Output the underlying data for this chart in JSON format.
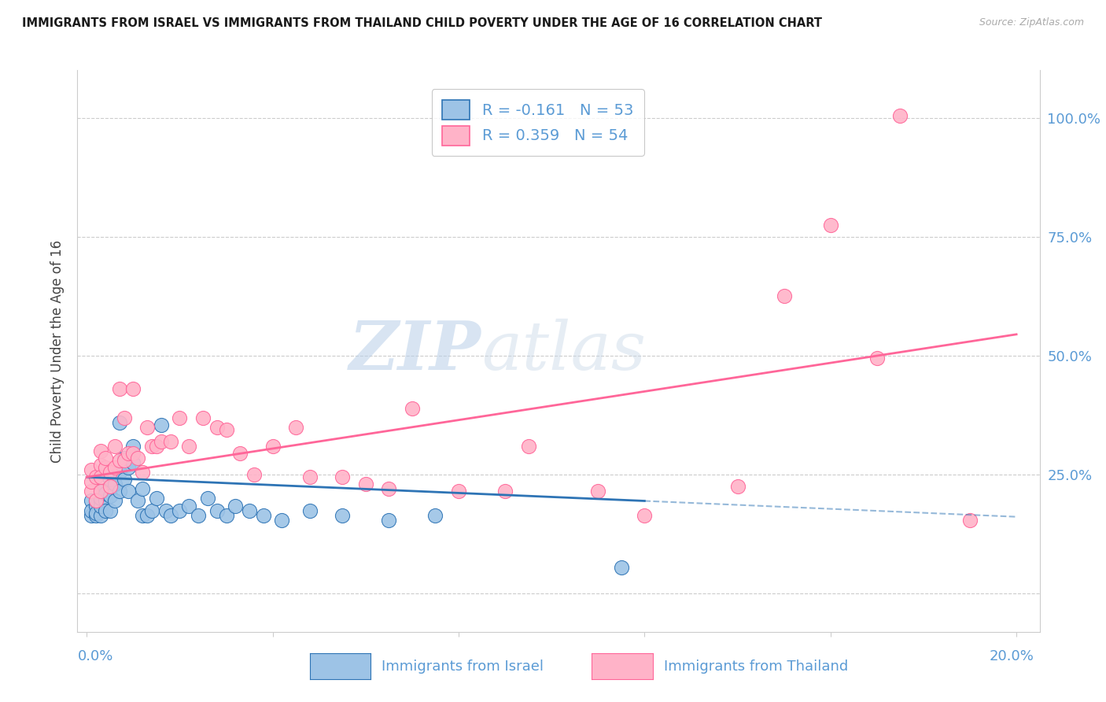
{
  "title": "IMMIGRANTS FROM ISRAEL VS IMMIGRANTS FROM THAILAND CHILD POVERTY UNDER THE AGE OF 16 CORRELATION CHART",
  "source": "Source: ZipAtlas.com",
  "ylabel": "Child Poverty Under the Age of 16",
  "right_axis_color": "#5b9bd5",
  "legend_r1": "-0.161",
  "legend_n1": "53",
  "legend_r2": "0.359",
  "legend_n2": "54",
  "legend_label1": "Immigrants from Israel",
  "legend_label2": "Immigrants from Thailand",
  "color_israel": "#9dc3e6",
  "color_thailand": "#ffb3c8",
  "color_israel_line": "#2e74b5",
  "color_thailand_line": "#ff6699",
  "watermark_zip": "ZIP",
  "watermark_atlas": "atlas",
  "israel_x": [
    0.001,
    0.001,
    0.001,
    0.002,
    0.002,
    0.002,
    0.002,
    0.003,
    0.003,
    0.003,
    0.003,
    0.003,
    0.004,
    0.004,
    0.004,
    0.005,
    0.005,
    0.005,
    0.006,
    0.006,
    0.007,
    0.007,
    0.007,
    0.008,
    0.008,
    0.009,
    0.009,
    0.01,
    0.01,
    0.011,
    0.012,
    0.012,
    0.013,
    0.014,
    0.015,
    0.016,
    0.017,
    0.018,
    0.02,
    0.022,
    0.024,
    0.026,
    0.028,
    0.03,
    0.032,
    0.035,
    0.038,
    0.042,
    0.048,
    0.055,
    0.065,
    0.075,
    0.115
  ],
  "israel_y": [
    0.195,
    0.165,
    0.175,
    0.185,
    0.165,
    0.17,
    0.195,
    0.165,
    0.195,
    0.185,
    0.2,
    0.215,
    0.195,
    0.175,
    0.21,
    0.24,
    0.205,
    0.175,
    0.195,
    0.23,
    0.36,
    0.255,
    0.215,
    0.285,
    0.24,
    0.265,
    0.215,
    0.275,
    0.31,
    0.195,
    0.22,
    0.165,
    0.165,
    0.175,
    0.2,
    0.355,
    0.175,
    0.165,
    0.175,
    0.185,
    0.165,
    0.2,
    0.175,
    0.165,
    0.185,
    0.175,
    0.165,
    0.155,
    0.175,
    0.165,
    0.155,
    0.165,
    0.055
  ],
  "thailand_x": [
    0.001,
    0.001,
    0.001,
    0.002,
    0.002,
    0.003,
    0.003,
    0.003,
    0.003,
    0.004,
    0.004,
    0.005,
    0.005,
    0.006,
    0.006,
    0.007,
    0.007,
    0.008,
    0.008,
    0.009,
    0.01,
    0.01,
    0.011,
    0.012,
    0.013,
    0.014,
    0.015,
    0.016,
    0.018,
    0.02,
    0.022,
    0.025,
    0.028,
    0.03,
    0.033,
    0.036,
    0.04,
    0.045,
    0.048,
    0.055,
    0.06,
    0.065,
    0.07,
    0.08,
    0.09,
    0.095,
    0.11,
    0.12,
    0.14,
    0.15,
    0.16,
    0.17,
    0.175,
    0.19
  ],
  "thailand_y": [
    0.215,
    0.235,
    0.26,
    0.195,
    0.245,
    0.215,
    0.27,
    0.245,
    0.3,
    0.265,
    0.285,
    0.225,
    0.255,
    0.31,
    0.265,
    0.28,
    0.43,
    0.37,
    0.28,
    0.295,
    0.43,
    0.295,
    0.285,
    0.255,
    0.35,
    0.31,
    0.31,
    0.32,
    0.32,
    0.37,
    0.31,
    0.37,
    0.35,
    0.345,
    0.295,
    0.25,
    0.31,
    0.35,
    0.245,
    0.245,
    0.23,
    0.22,
    0.39,
    0.215,
    0.215,
    0.31,
    0.215,
    0.165,
    0.225,
    0.625,
    0.775,
    0.495,
    1.005,
    0.155
  ],
  "israel_line_x0": 0.0,
  "israel_line_y0": 0.245,
  "israel_line_x1": 0.12,
  "israel_line_y1": 0.195,
  "israel_line_ext_x0": 0.12,
  "israel_line_ext_x1": 0.2,
  "thailand_line_x0": 0.0,
  "thailand_line_y0": 0.245,
  "thailand_line_x1": 0.2,
  "thailand_line_y1": 0.545,
  "ylim_min": -0.08,
  "ylim_max": 1.1,
  "xlim_min": -0.002,
  "xlim_max": 0.205
}
